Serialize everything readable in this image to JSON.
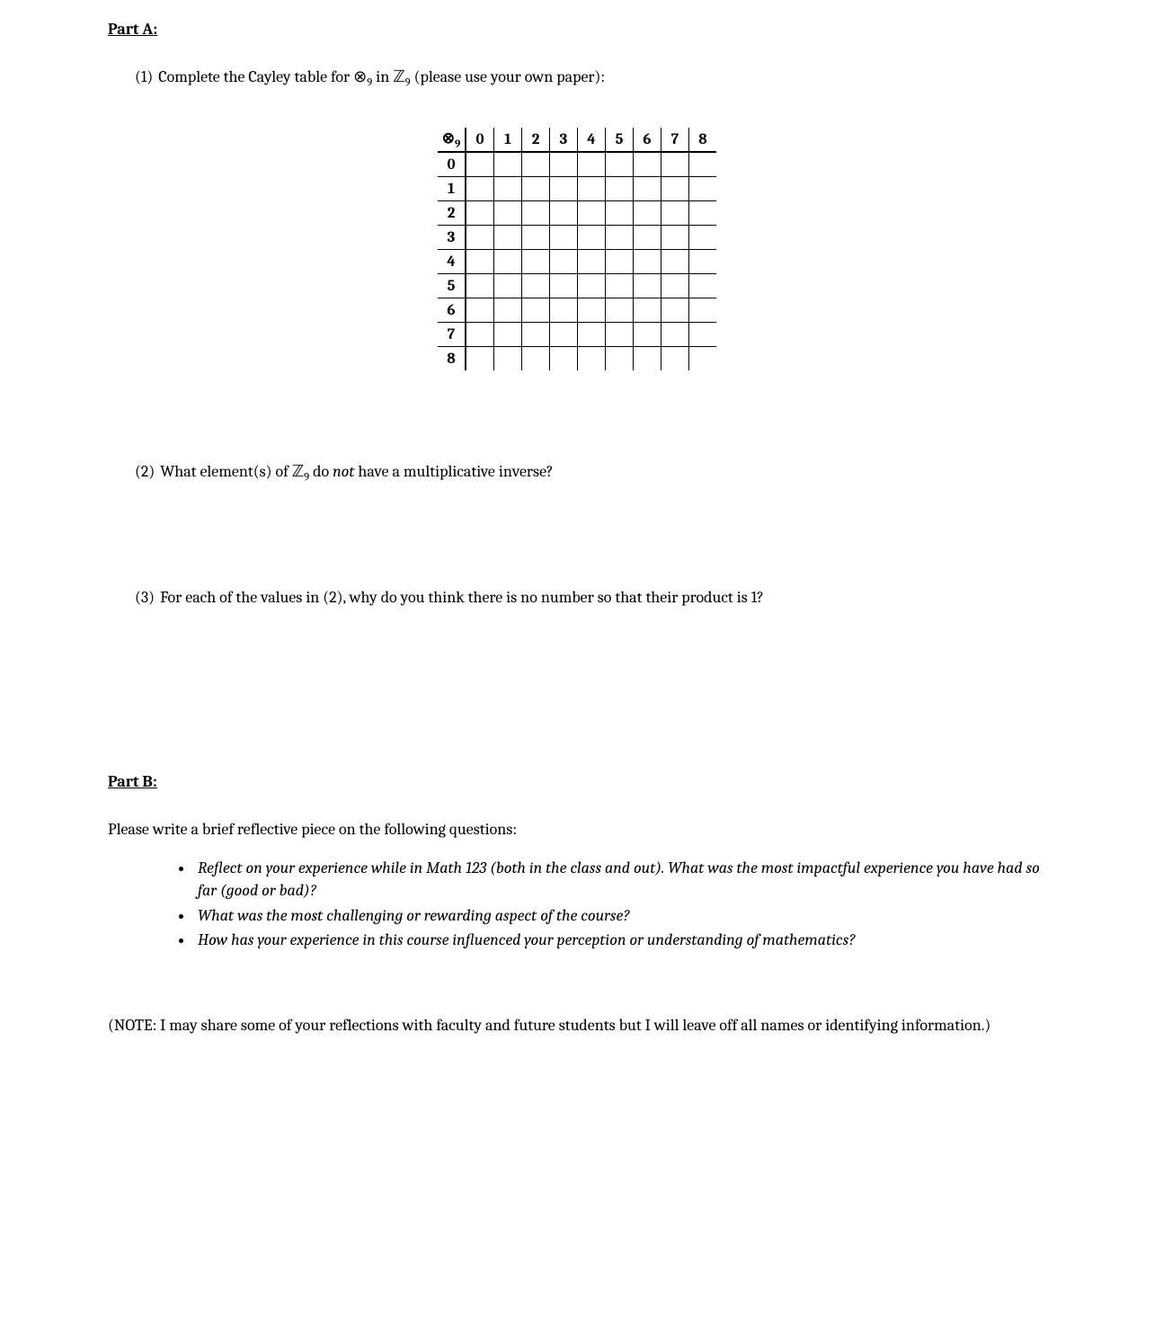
{
  "partA": {
    "heading": "Part A:",
    "q1_num": "(1)",
    "q1_text_a": "Complete the Cayley table for ",
    "q1_sym_otimes": "⊗",
    "q1_sub9": "9",
    "q1_text_b": " in ",
    "q1_sym_Z": "ℤ",
    "q1_text_c": " (please use your own paper):",
    "table": {
      "corner_sym": "⊗",
      "corner_sub": "9",
      "col_headers": [
        "0",
        "1",
        "2",
        "3",
        "4",
        "5",
        "6",
        "7",
        "8"
      ],
      "row_headers": [
        "0",
        "1",
        "2",
        "3",
        "4",
        "5",
        "6",
        "7",
        "8"
      ]
    },
    "q2_num": "(2)",
    "q2_text_a": "What element(s) of ",
    "q2_sym_Z": "ℤ",
    "q2_sub9": "9",
    "q2_text_b": " do ",
    "q2_not": "not",
    "q2_text_c": " have a multiplicative inverse?",
    "q3_num": "(3)",
    "q3_text": "For each of the values in (2), why do you think there is no number so that their product is 1?"
  },
  "partB": {
    "heading": "Part B:",
    "intro": "Please write a brief reflective piece on the following questions:",
    "bullets": [
      "Reflect on your experience while in Math 123 (both in the class and out).  What was the most impactful experience you have had so far (good or bad)?",
      "What was the most challenging or rewarding aspect of the course?",
      "How has your experience in this course influenced your perception or understanding of mathematics?"
    ],
    "note": "(NOTE: I may share some of your reflections with faculty and future students but I will leave off all names or identifying information.)"
  }
}
